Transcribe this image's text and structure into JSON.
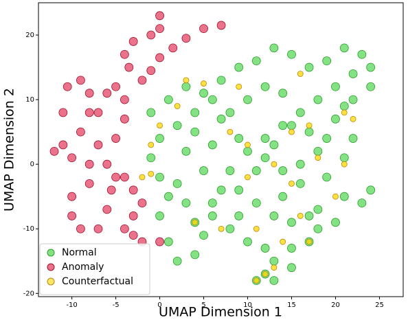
{
  "chart_data": {
    "type": "scatter",
    "xlabel": "UMAP Dimension 1",
    "ylabel": "UMAP Dimension 2",
    "xlim": [
      -13.8,
      27.7
    ],
    "ylim": [
      -20.5,
      25
    ],
    "xticks": [
      -10,
      -5,
      0,
      5,
      10,
      15,
      20,
      25
    ],
    "yticks": [
      -20,
      -10,
      0,
      10,
      20
    ],
    "legend": "lower left",
    "series": [
      {
        "name": "Normal",
        "color": "#32cd32",
        "x": [
          -1,
          1,
          3,
          5,
          4,
          2,
          0,
          -1,
          0,
          1,
          0,
          1,
          2,
          4,
          5,
          4,
          6,
          8,
          10,
          12,
          13,
          12,
          11,
          13,
          15,
          15,
          17,
          18,
          17,
          15,
          13,
          11,
          9,
          8,
          10,
          12,
          14,
          16,
          18,
          20,
          22,
          24,
          22,
          20,
          22,
          21,
          19,
          21,
          23,
          24,
          20,
          18,
          16,
          14,
          12,
          9,
          7,
          6,
          7,
          9,
          11,
          13,
          15,
          17,
          19,
          21,
          23,
          24,
          10,
          12,
          14,
          15,
          13,
          11,
          7,
          6,
          5,
          3,
          4,
          2,
          3,
          17,
          18,
          16,
          19,
          21,
          9,
          14,
          6,
          8
        ],
        "values": [
          8,
          10,
          12,
          11,
          8,
          6,
          4,
          1,
          -2,
          -5,
          -8,
          -12,
          -15,
          -14,
          -11,
          -9,
          -8,
          -10,
          -12,
          -13,
          -15,
          -17,
          -18,
          -18,
          -16,
          -13,
          -12,
          -10,
          -8,
          -9,
          -8,
          -6,
          -4,
          -1,
          2,
          4,
          6,
          8,
          10,
          12,
          14,
          12,
          10,
          7,
          4,
          1,
          -2,
          -5,
          -6,
          -4,
          -9,
          -7,
          -3,
          -1,
          1,
          4,
          7,
          10,
          13,
          15,
          16,
          18,
          17,
          15,
          16,
          18,
          17,
          15,
          10,
          12,
          11,
          6,
          3,
          -1,
          -4,
          -6,
          -1,
          2,
          5,
          -3,
          -6,
          5,
          2,
          0,
          4,
          9,
          -8,
          -5,
          3,
          8
        ]
      },
      {
        "name": "Anomaly",
        "color": "#dc143c",
        "x": [
          0,
          0,
          -1,
          -3,
          -4,
          -3.5,
          -2,
          -1,
          0,
          1.5,
          3,
          5,
          7,
          -11,
          -10.5,
          -9,
          -8,
          -8,
          -9,
          -11,
          -12,
          -10,
          -8,
          -8,
          -10,
          -10,
          -9,
          -7,
          -6,
          -5.5,
          -7,
          -6,
          -5,
          -4,
          -4,
          -5,
          -7,
          -6,
          -5,
          -4,
          -3,
          -2,
          -3,
          -4,
          -3,
          -2,
          0
        ],
        "values": [
          23,
          21,
          20,
          19,
          17,
          15,
          13,
          14.5,
          16.5,
          18,
          19.5,
          21,
          21.5,
          8,
          12,
          13,
          11,
          8,
          5,
          3,
          2,
          1,
          0,
          -3,
          -5,
          -8,
          -10,
          -10,
          -7,
          -4,
          8,
          11,
          12,
          10,
          7,
          4,
          3,
          0,
          -2,
          -2,
          -4,
          -6,
          -8,
          -10,
          -11,
          -12,
          -12
        ]
      },
      {
        "name": "Counterfactual",
        "color": "#ffd700",
        "x": [
          -1,
          -2,
          -1,
          0,
          2,
          3,
          5,
          8,
          10,
          11,
          12,
          11,
          13,
          14,
          17,
          16,
          15,
          17,
          21,
          22,
          16,
          20,
          4,
          7,
          13,
          9,
          18,
          15,
          21,
          10
        ],
        "values": [
          3,
          -2,
          -1.5,
          6,
          9,
          13,
          12.5,
          5,
          3,
          -10,
          -17,
          -18,
          -16,
          -12,
          -12,
          -8,
          5,
          6,
          8,
          7,
          14,
          -5,
          -9,
          -10,
          0,
          12,
          1,
          -3,
          0,
          -2
        ]
      }
    ]
  }
}
